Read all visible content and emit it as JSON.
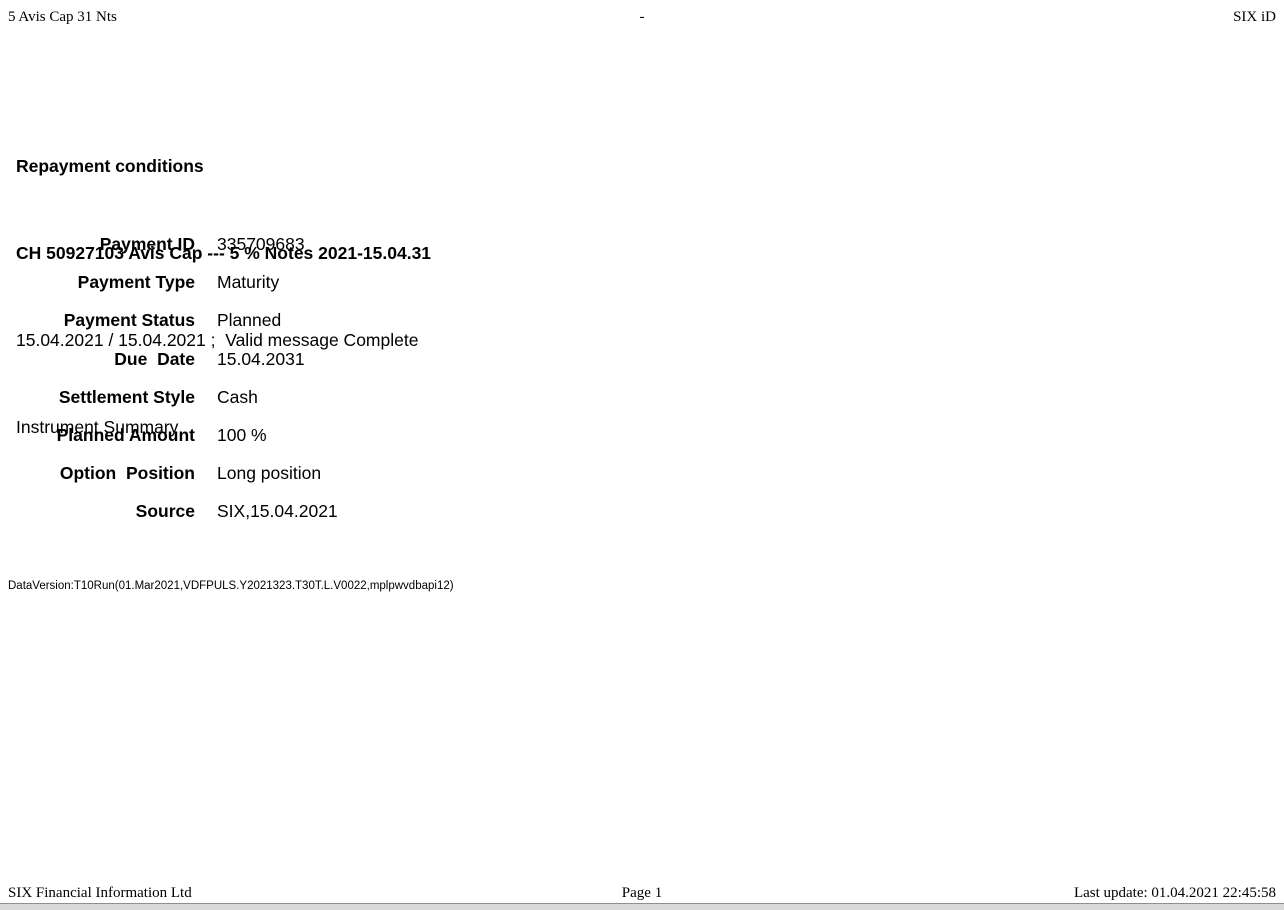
{
  "page_header": {
    "document_short_name": "5 Avis Cap 31 Nts",
    "center_text": "-",
    "brand": "SIX iD"
  },
  "title_block": {
    "report_title": "Repayment conditions",
    "instrument_title": "CH 50927103 Avis Cap --- 5 % Notes 2021-15.04.31",
    "dates_and_status": "15.04.2021 / 15.04.2021 ;  Valid message Complete",
    "section_title": "Instrument Summary"
  },
  "summary": {
    "rows": [
      {
        "label": "Payment ID",
        "value": "335709683"
      },
      {
        "label": "Payment Type",
        "value": "Maturity"
      },
      {
        "label": "Payment Status",
        "value": "Planned"
      },
      {
        "label": "Due  Date",
        "value": "15.04.2031"
      },
      {
        "label": "Settlement Style",
        "value": "Cash"
      },
      {
        "label": "Planned Amount",
        "value": "100 %"
      },
      {
        "label": "Option  Position",
        "value": "Long position"
      },
      {
        "label": "Source",
        "value": "SIX,15.04.2021"
      }
    ]
  },
  "data_version": "DataVersion:T10Run(01.Mar2021,VDFPULS.Y2021323.T30T.L.V0022,mplpwvdbapi12)",
  "page_footer": {
    "company": "SIX Financial Information Ltd",
    "page_number": "Page 1",
    "last_update": "Last update: 01.04.2021 22:45:58"
  },
  "colors": {
    "text": "#000000",
    "background": "#ffffff",
    "bottom_bar_fill": "#d9d9d9",
    "bottom_bar_border": "#8f8f8f"
  }
}
